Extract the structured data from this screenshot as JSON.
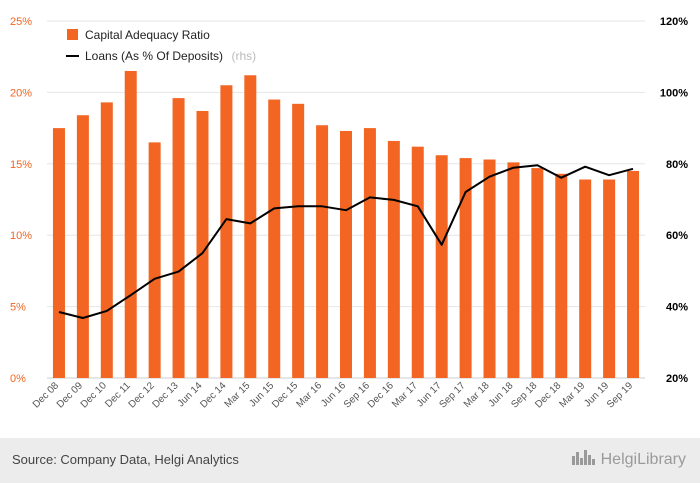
{
  "chart_data": {
    "type": "bar",
    "categories": [
      "Dec 08",
      "Dec 09",
      "Dec 10",
      "Dec 11",
      "Dec 12",
      "Dec 13",
      "Jun 14",
      "Dec 14",
      "Mar 15",
      "Jun 15",
      "Dec 15",
      "Mar 16",
      "Jun 16",
      "Sep 16",
      "Dec 16",
      "Mar 17",
      "Jun 17",
      "Sep 17",
      "Mar 18",
      "Jun 18",
      "Sep 18",
      "Dec 18",
      "Mar 19",
      "Jun 19",
      "Sep 19"
    ],
    "series": [
      {
        "name": "Capital Adequacy Ratio",
        "kind": "bar",
        "axis": "left",
        "color": "#f26522",
        "values": [
          17.5,
          18.4,
          19.3,
          21.5,
          16.5,
          19.6,
          18.7,
          20.5,
          21.2,
          19.5,
          19.2,
          17.7,
          17.3,
          17.5,
          16.6,
          16.2,
          15.6,
          15.4,
          15.3,
          15.1,
          14.7,
          14.3,
          13.9,
          13.9,
          14.5
        ]
      },
      {
        "name": "Loans (As % Of Deposits)",
        "kind": "line",
        "axis": "right",
        "color": "#000000",
        "values": [
          38.5,
          36.8,
          38.8,
          43.2,
          47.8,
          49.8,
          55.0,
          64.5,
          63.3,
          67.5,
          68.1,
          68.1,
          67.0,
          70.6,
          69.9,
          68.1,
          57.3,
          72.1,
          76.4,
          78.9,
          79.6,
          76.1,
          79.2,
          76.8,
          78.6
        ]
      }
    ],
    "ylim_left": [
      0,
      25
    ],
    "yticks_left": [
      "0%",
      "5%",
      "10%",
      "15%",
      "20%",
      "25%"
    ],
    "ylim_right": [
      20,
      120
    ],
    "yticks_right": [
      "20%",
      "40%",
      "60%",
      "80%",
      "100%",
      "120%"
    ],
    "legend_position": "top-left",
    "legend_rhs_note": "(rhs)",
    "grid": true
  },
  "footer": {
    "source": "Source: Company Data, Helgi Analytics",
    "brand": "HelgiLibrary"
  },
  "colors": {
    "accent": "#f26522",
    "footer_bg": "#ececec"
  },
  "icons": {
    "brand_logo": "city-skyline-icon"
  }
}
